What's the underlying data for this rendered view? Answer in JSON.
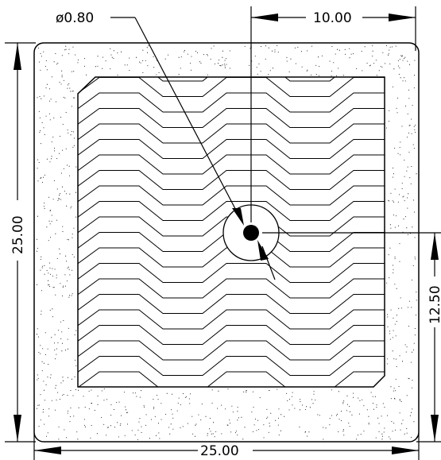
{
  "dimensions": {
    "overall_width": "25.00",
    "overall_height": "25.00",
    "hole_diameter": "ø0.80",
    "hole_offset_x": "10.00",
    "hole_offset_y": "12.50"
  },
  "colors": {
    "line": "#000000",
    "background": "#ffffff",
    "stipple": "#000000"
  }
}
